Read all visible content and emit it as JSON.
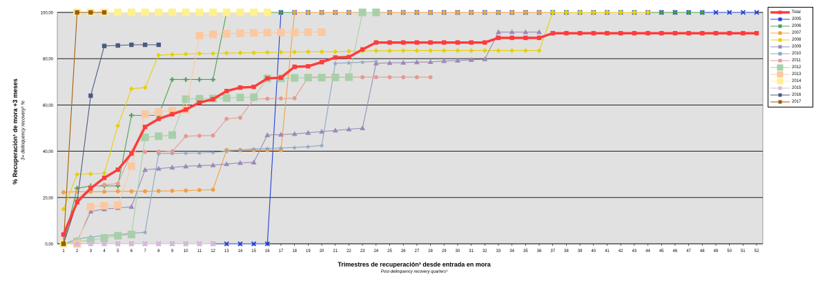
{
  "chart_data": {
    "type": "line",
    "xlabel": "Trimestres de recuperación³ desde entrada en mora",
    "xlabel_sub": "Post-delinquency recovery quarters³",
    "ylabel": "% Recuperación¹ de mora +3 meses",
    "ylabel_sub": "3+ delinquency recovery¹ %",
    "ylim": [
      0,
      100
    ],
    "yticks": [
      "0,00",
      "20,00",
      "40,00",
      "60,00",
      "80,00",
      "100,00"
    ],
    "ytick_values": [
      0,
      20,
      40,
      60,
      80,
      100
    ],
    "xlim": [
      1,
      52
    ],
    "x_ticks": [
      "1",
      "2",
      "3",
      "4",
      "5",
      "6",
      "7",
      "8",
      "9",
      "10",
      "11",
      "12",
      "13",
      "14",
      "15",
      "16",
      "17",
      "18",
      "19",
      "20",
      "21",
      "22",
      "23",
      "24",
      "25",
      "26",
      "27",
      "28",
      "29",
      "30",
      "31",
      "32",
      "33",
      "34",
      "35",
      "36",
      "37",
      "38",
      "39",
      "40",
      "41",
      "42",
      "43",
      "44",
      "45",
      "46",
      "47",
      "48",
      "49",
      "50",
      "51",
      "52"
    ],
    "grid": "horizontal",
    "legend_position": "right",
    "background_color": "#e1e1e1",
    "series": [
      {
        "name": "2005",
        "color": "#1f3fd6",
        "marker": "x",
        "values": [
          0,
          0,
          0,
          0,
          0,
          0,
          0,
          0,
          0,
          0,
          0,
          0,
          0,
          0,
          0,
          0,
          100,
          100,
          100,
          100,
          100,
          100,
          100,
          100,
          100,
          100,
          100,
          100,
          100,
          100,
          100,
          100,
          100,
          100,
          100,
          100,
          100,
          100,
          100,
          100,
          100,
          100,
          100,
          100,
          100,
          100,
          100,
          100,
          100,
          100,
          100,
          100
        ]
      },
      {
        "name": "2006",
        "color": "#4fa04f",
        "marker": "plus",
        "values": [
          0,
          24,
          25,
          25,
          25,
          55.5,
          55.5,
          55.5,
          71,
          71,
          71,
          71,
          100,
          100,
          100,
          100,
          100,
          100,
          100,
          100,
          100,
          100,
          100,
          100,
          100,
          100,
          100,
          100,
          100,
          100,
          100,
          100,
          100,
          100,
          100,
          100,
          100,
          100,
          100,
          100,
          100,
          100,
          100,
          100,
          100,
          100,
          100,
          100
        ]
      },
      {
        "name": "2007",
        "color": "#f4a040",
        "marker": "circle",
        "values": [
          22.3,
          22.5,
          22.5,
          22.5,
          22.7,
          22.7,
          22.7,
          22.8,
          22.9,
          23,
          23.2,
          23.4,
          40.5,
          40.5,
          40.5,
          40.5,
          40.5,
          100,
          100,
          100,
          100,
          100,
          100,
          100,
          100,
          100,
          100,
          100,
          100,
          100,
          100,
          100,
          100,
          100,
          100,
          100,
          100,
          100,
          100,
          100,
          100,
          100,
          100,
          100
        ]
      },
      {
        "name": "2008",
        "color": "#e8d000",
        "marker": "diamond",
        "values": [
          15,
          30,
          30.2,
          30.5,
          51,
          67,
          67.5,
          81.5,
          81.8,
          82,
          82.2,
          82.3,
          82.4,
          82.5,
          82.6,
          82.7,
          82.8,
          82.9,
          83,
          83,
          83,
          83.2,
          83.3,
          83.4,
          83.4,
          83.5,
          83.5,
          83.5,
          83.5,
          83.5,
          83.5,
          83.5,
          83.5,
          83.5,
          83.5,
          83.5,
          100,
          100,
          100,
          100,
          100,
          100,
          100,
          100
        ]
      },
      {
        "name": "2009",
        "color": "#9a8ab8",
        "marker": "triangle",
        "values": [
          0,
          1,
          14,
          15,
          15.5,
          16,
          32,
          32.5,
          33,
          33.5,
          33.8,
          34,
          34.5,
          35,
          35.2,
          47,
          47.2,
          47.5,
          48,
          48.5,
          49,
          49.5,
          50,
          78,
          78.2,
          78.3,
          78.5,
          78.6,
          79,
          79.2,
          79.5,
          79.8,
          91.5,
          91.5,
          91.5,
          91.5
        ]
      },
      {
        "name": "2010",
        "color": "#8fa4c4",
        "marker": "star",
        "values": [
          0,
          2,
          3,
          3.5,
          4,
          4.5,
          5,
          39,
          39.1,
          39.2,
          39.3,
          39.5,
          40,
          40.5,
          41,
          41.2,
          41.4,
          41.6,
          42,
          42.5,
          78,
          78.2,
          78.5,
          78.8
        ]
      },
      {
        "name": "2011",
        "color": "#e69a90",
        "marker": "circle",
        "values": [
          0,
          19,
          24.5,
          25.5,
          26,
          39.5,
          39.7,
          39.8,
          40,
          46.5,
          46.7,
          46.8,
          54,
          54.5,
          62.5,
          62.7,
          62.8,
          62.9,
          72,
          72,
          72,
          72,
          72,
          72,
          72,
          72,
          72,
          72
        ]
      },
      {
        "name": "2012",
        "color": "#a8d0a8",
        "marker": "square-large",
        "values": [
          0,
          1,
          1.5,
          2.5,
          3.5,
          4,
          46,
          46.5,
          47,
          62.5,
          62.7,
          62.8,
          63,
          63.2,
          63.4,
          71.5,
          71.5,
          71.7,
          71.8,
          71.8,
          71.9,
          72,
          100,
          100
        ]
      },
      {
        "name": "2013",
        "color": "#fbc8a0",
        "marker": "square-large",
        "values": [
          0,
          0,
          16,
          16.5,
          16.7,
          33.5,
          56,
          57,
          57.5,
          58,
          90,
          90.5,
          90.8,
          91,
          91.2,
          91.3,
          91.4,
          91.4,
          91.5,
          91.5
        ]
      },
      {
        "name": "2014",
        "color": "#fff090",
        "marker": "square-large",
        "values": [
          0,
          100,
          100,
          100,
          100,
          100,
          100,
          100,
          100,
          100,
          100,
          100,
          100,
          100,
          100,
          100
        ]
      },
      {
        "name": "2015",
        "color": "#d8b8d8",
        "marker": "square",
        "values": [
          0,
          0,
          0,
          0,
          0,
          0,
          0,
          0,
          0,
          0,
          0,
          0
        ]
      },
      {
        "name": "2016",
        "color": "#4a5a80",
        "marker": "square",
        "values": [
          0,
          18,
          64,
          85.5,
          85.7,
          86,
          86,
          86
        ]
      },
      {
        "name": "2017",
        "color": "#a05a10",
        "marker": "square",
        "values": [
          0,
          100,
          100,
          100
        ]
      },
      {
        "name": "Total",
        "color": "#ff3b3b",
        "marker": "square",
        "values": [
          4,
          18,
          24,
          28.5,
          32,
          39,
          50.5,
          54,
          56,
          58,
          61,
          62.5,
          66,
          67.5,
          67.8,
          71.5,
          71.8,
          76.5,
          76.7,
          78.5,
          80.5,
          80.7,
          84,
          87,
          87,
          87,
          87,
          87,
          87,
          87,
          87,
          87,
          89,
          89,
          89,
          89,
          91,
          91,
          91,
          91,
          91,
          91,
          91,
          91,
          91,
          91,
          91,
          91,
          91,
          91,
          91,
          91
        ]
      }
    ]
  }
}
